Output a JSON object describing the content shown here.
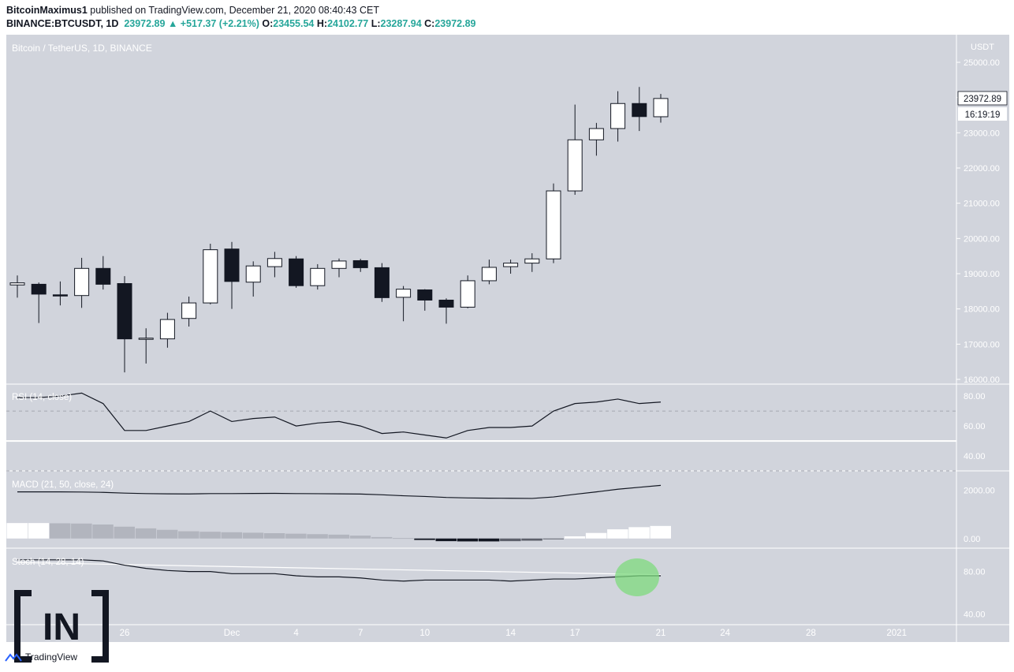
{
  "header": {
    "author": "BitcoinMaximus1",
    "published_text": "published on TradingView.com, December 21, 2020 08:40:43 CET",
    "symbol": "BINANCE:BTCUSDT, 1D",
    "last_price": "23972.89",
    "change": "▲ +517.37 (+2.21%)",
    "o_label": "O:",
    "o_value": "23455.54",
    "h_label": "H:",
    "h_value": "24102.77",
    "l_label": "L:",
    "l_value": "23287.94",
    "c_label": "C:",
    "c_value": "23972.89"
  },
  "main_panel": {
    "title": "Bitcoin / TetherUS, 1D, BINANCE",
    "currency": "USDT",
    "price_tag": "23972.89",
    "countdown_tag": "16:19:19"
  },
  "indicators": {
    "rsi": "RSI (14, close)",
    "macd": "MACD (21, 50, close, 24)",
    "stoch": "Stoch (14, 28, 14)"
  },
  "watermark": "IN",
  "footer_logo": "TradingView",
  "colors": {
    "background": "#d1d4dc",
    "bull_candle": "#ffffff",
    "bear_candle": "#131722",
    "highlight": "#7ddb7d"
  },
  "chart_data": [
    {
      "type": "candlestick",
      "title": "Bitcoin / TetherUS, 1D, BINANCE",
      "ylabel": "USDT",
      "ylim": [
        16000,
        25000
      ],
      "yticks": [
        16000,
        17000,
        18000,
        19000,
        20000,
        21000,
        22000,
        23000,
        24000,
        25000
      ],
      "ytick_labels": [
        "16000.00",
        "17000.00",
        "18000.00",
        "19000.00",
        "20000.00",
        "21000.00",
        "22000.00",
        "23000.00",
        "24000.00",
        "25000.00"
      ],
      "x_tick_labels": [
        "26",
        "Dec",
        "4",
        "7",
        "10",
        "14",
        "17",
        "21",
        "24",
        "28",
        "2021"
      ],
      "candles": [
        {
          "o": 18680,
          "h": 18950,
          "l": 18320,
          "c": 18740
        },
        {
          "o": 18700,
          "h": 18750,
          "l": 17600,
          "c": 18420
        },
        {
          "o": 18400,
          "h": 18780,
          "l": 18100,
          "c": 18380
        },
        {
          "o": 18380,
          "h": 19450,
          "l": 18030,
          "c": 19150
        },
        {
          "o": 19150,
          "h": 19500,
          "l": 18550,
          "c": 18700
        },
        {
          "o": 18720,
          "h": 18930,
          "l": 16200,
          "c": 17150
        },
        {
          "o": 17150,
          "h": 17450,
          "l": 16450,
          "c": 17170
        },
        {
          "o": 17150,
          "h": 17890,
          "l": 16900,
          "c": 17700
        },
        {
          "o": 17730,
          "h": 18350,
          "l": 17500,
          "c": 18170
        },
        {
          "o": 18170,
          "h": 19850,
          "l": 18130,
          "c": 19680
        },
        {
          "o": 19700,
          "h": 19900,
          "l": 18000,
          "c": 18780
        },
        {
          "o": 18760,
          "h": 19350,
          "l": 18350,
          "c": 19220
        },
        {
          "o": 19200,
          "h": 19620,
          "l": 18900,
          "c": 19430
        },
        {
          "o": 19420,
          "h": 19500,
          "l": 18600,
          "c": 18660
        },
        {
          "o": 18660,
          "h": 19270,
          "l": 18550,
          "c": 19150
        },
        {
          "o": 19150,
          "h": 19430,
          "l": 18900,
          "c": 19360
        },
        {
          "o": 19370,
          "h": 19420,
          "l": 19050,
          "c": 19170
        },
        {
          "o": 19170,
          "h": 19300,
          "l": 18200,
          "c": 18320
        },
        {
          "o": 18330,
          "h": 18650,
          "l": 17650,
          "c": 18560
        },
        {
          "o": 18540,
          "h": 18560,
          "l": 17950,
          "c": 18250
        },
        {
          "o": 18250,
          "h": 18300,
          "l": 17580,
          "c": 18050
        },
        {
          "o": 18050,
          "h": 18950,
          "l": 18020,
          "c": 18800
        },
        {
          "o": 18800,
          "h": 19400,
          "l": 18700,
          "c": 19180
        },
        {
          "o": 19200,
          "h": 19400,
          "l": 19000,
          "c": 19300
        },
        {
          "o": 19300,
          "h": 19580,
          "l": 19050,
          "c": 19420
        },
        {
          "o": 19420,
          "h": 21560,
          "l": 19300,
          "c": 21350
        },
        {
          "o": 21350,
          "h": 23800,
          "l": 21240,
          "c": 22800
        },
        {
          "o": 22800,
          "h": 23280,
          "l": 22350,
          "c": 23120
        },
        {
          "o": 23120,
          "h": 24180,
          "l": 22750,
          "c": 23830
        },
        {
          "o": 23830,
          "h": 24300,
          "l": 23050,
          "c": 23460
        },
        {
          "o": 23455.54,
          "h": 24102.77,
          "l": 23287.94,
          "c": 23972.89
        }
      ]
    },
    {
      "type": "line",
      "title": "RSI (14, close)",
      "ylim": [
        30,
        88
      ],
      "ytick_labels": [
        "40.00",
        "60.00",
        "80.00"
      ],
      "levels": [
        70,
        30
      ],
      "midline": 50,
      "values": [
        79,
        79,
        80,
        82,
        75,
        57,
        57,
        60,
        63,
        70,
        63,
        65,
        66,
        60,
        62,
        63,
        60,
        55,
        56,
        54,
        52,
        57,
        59,
        59,
        60,
        70,
        75,
        76,
        78,
        75,
        76
      ]
    },
    {
      "type": "line+bar",
      "title": "MACD (21, 50, close, 24)",
      "ylim": [
        -400,
        2800
      ],
      "ytick_labels": [
        "0.00",
        "2000.00"
      ],
      "macd_line": [
        1930,
        1930,
        1930,
        1925,
        1910,
        1880,
        1860,
        1850,
        1845,
        1860,
        1860,
        1865,
        1870,
        1860,
        1855,
        1850,
        1840,
        1810,
        1770,
        1740,
        1700,
        1680,
        1670,
        1665,
        1660,
        1720,
        1830,
        1930,
        2040,
        2120,
        2200
      ],
      "histogram": [
        640,
        640,
        630,
        620,
        580,
        490,
        420,
        360,
        300,
        280,
        260,
        240,
        220,
        200,
        180,
        160,
        120,
        60,
        20,
        -60,
        -110,
        -120,
        -120,
        -110,
        -90,
        -30,
        90,
        230,
        380,
        470,
        520
      ]
    },
    {
      "type": "line",
      "title": "Stoch (14, 28, 14)",
      "ylim": [
        30,
        102
      ],
      "ytick_labels": [
        "40.00",
        "80.00"
      ],
      "k_line": [
        91,
        91,
        91,
        91,
        90,
        86,
        83,
        81,
        80,
        80,
        78,
        78,
        78,
        76,
        75,
        75,
        74,
        72,
        71,
        72,
        72,
        72,
        72,
        71,
        72,
        73,
        73,
        74,
        75,
        76,
        76
      ],
      "d_line": [
        88.5,
        77
      ]
    }
  ]
}
